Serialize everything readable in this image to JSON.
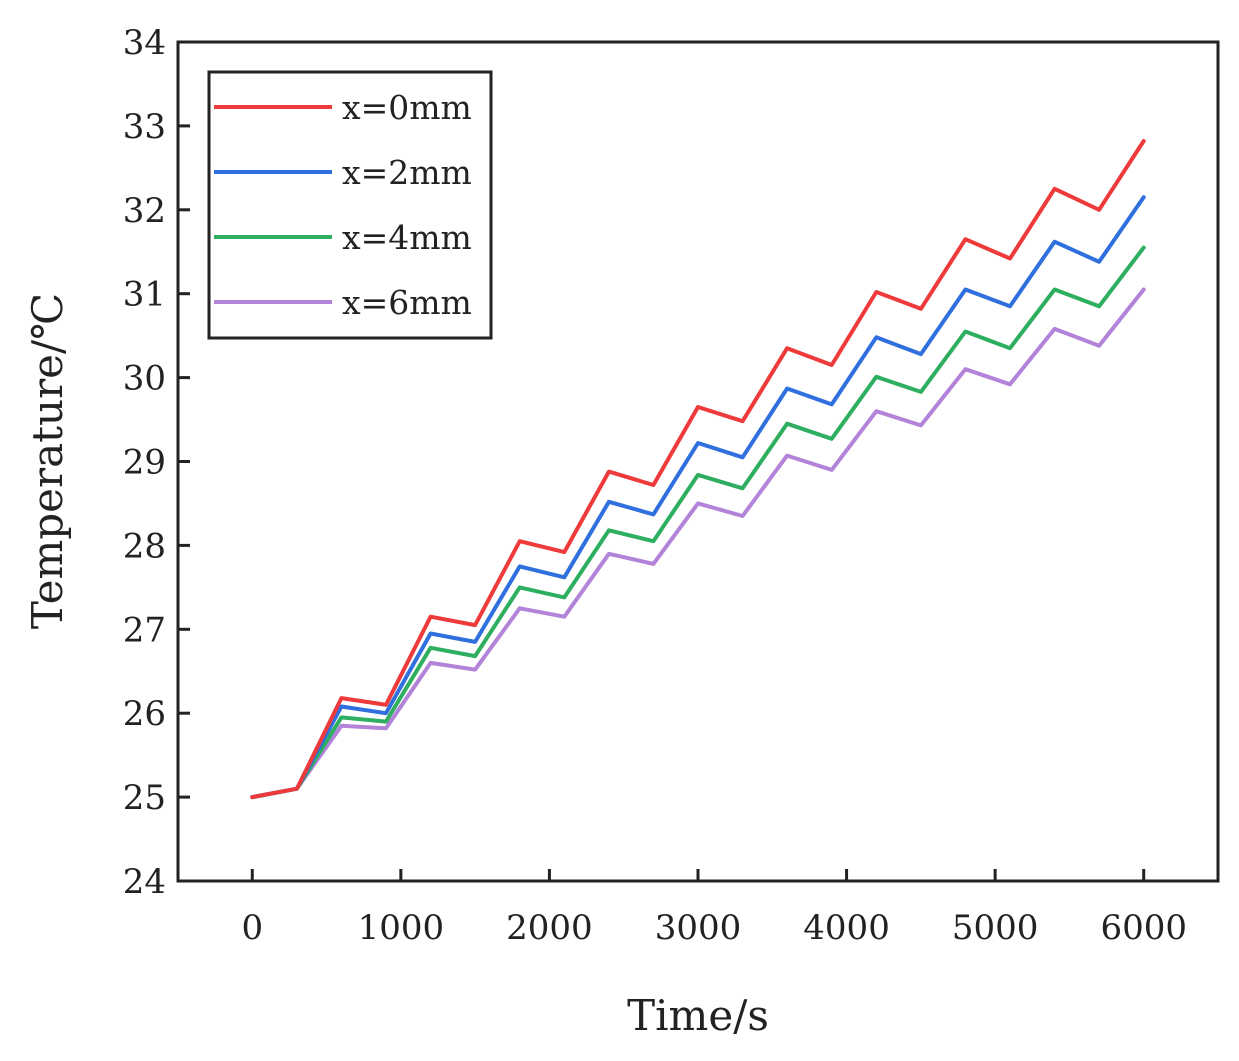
{
  "chart_data": {
    "type": "line",
    "title": "",
    "xlabel": "Time/s",
    "ylabel": "Temperature/℃",
    "xlim": [
      -500,
      6500
    ],
    "ylim": [
      24,
      34
    ],
    "xticks": [
      0,
      1000,
      2000,
      3000,
      4000,
      5000,
      6000
    ],
    "yticks": [
      24,
      25,
      26,
      27,
      28,
      29,
      30,
      31,
      32,
      33,
      34
    ],
    "x": [
      0,
      300,
      600,
      900,
      1200,
      1500,
      1800,
      2100,
      2400,
      2700,
      3000,
      3300,
      3600,
      3900,
      4200,
      4500,
      4800,
      5100,
      5400,
      5700,
      6000
    ],
    "series": [
      {
        "name": "x=0mm",
        "color": "#ee3a3a",
        "values": [
          25.0,
          25.1,
          26.18,
          26.1,
          27.15,
          27.05,
          28.05,
          27.92,
          28.88,
          28.72,
          29.65,
          29.48,
          30.35,
          30.15,
          31.02,
          30.82,
          31.65,
          31.42,
          32.25,
          32.0,
          32.82
        ]
      },
      {
        "name": "x=2mm",
        "color": "#2f6fde",
        "values": [
          25.0,
          25.1,
          26.08,
          26.0,
          26.95,
          26.85,
          27.75,
          27.62,
          28.52,
          28.37,
          29.22,
          29.05,
          29.87,
          29.68,
          30.48,
          30.28,
          31.05,
          30.85,
          31.62,
          31.38,
          32.15
        ]
      },
      {
        "name": "x=4mm",
        "color": "#2eae5f",
        "values": [
          25.0,
          25.1,
          25.95,
          25.9,
          26.78,
          26.68,
          27.5,
          27.38,
          28.18,
          28.05,
          28.84,
          28.68,
          29.45,
          29.27,
          30.01,
          29.83,
          30.55,
          30.35,
          31.05,
          30.85,
          31.55
        ]
      },
      {
        "name": "x=6mm",
        "color": "#b383d9",
        "values": [
          25.0,
          25.1,
          25.85,
          25.82,
          26.6,
          26.52,
          27.25,
          27.15,
          27.9,
          27.78,
          28.5,
          28.35,
          29.07,
          28.9,
          29.6,
          29.43,
          30.1,
          29.92,
          30.58,
          30.38,
          31.05
        ]
      }
    ],
    "legend_position": "top-left",
    "grid": false
  }
}
